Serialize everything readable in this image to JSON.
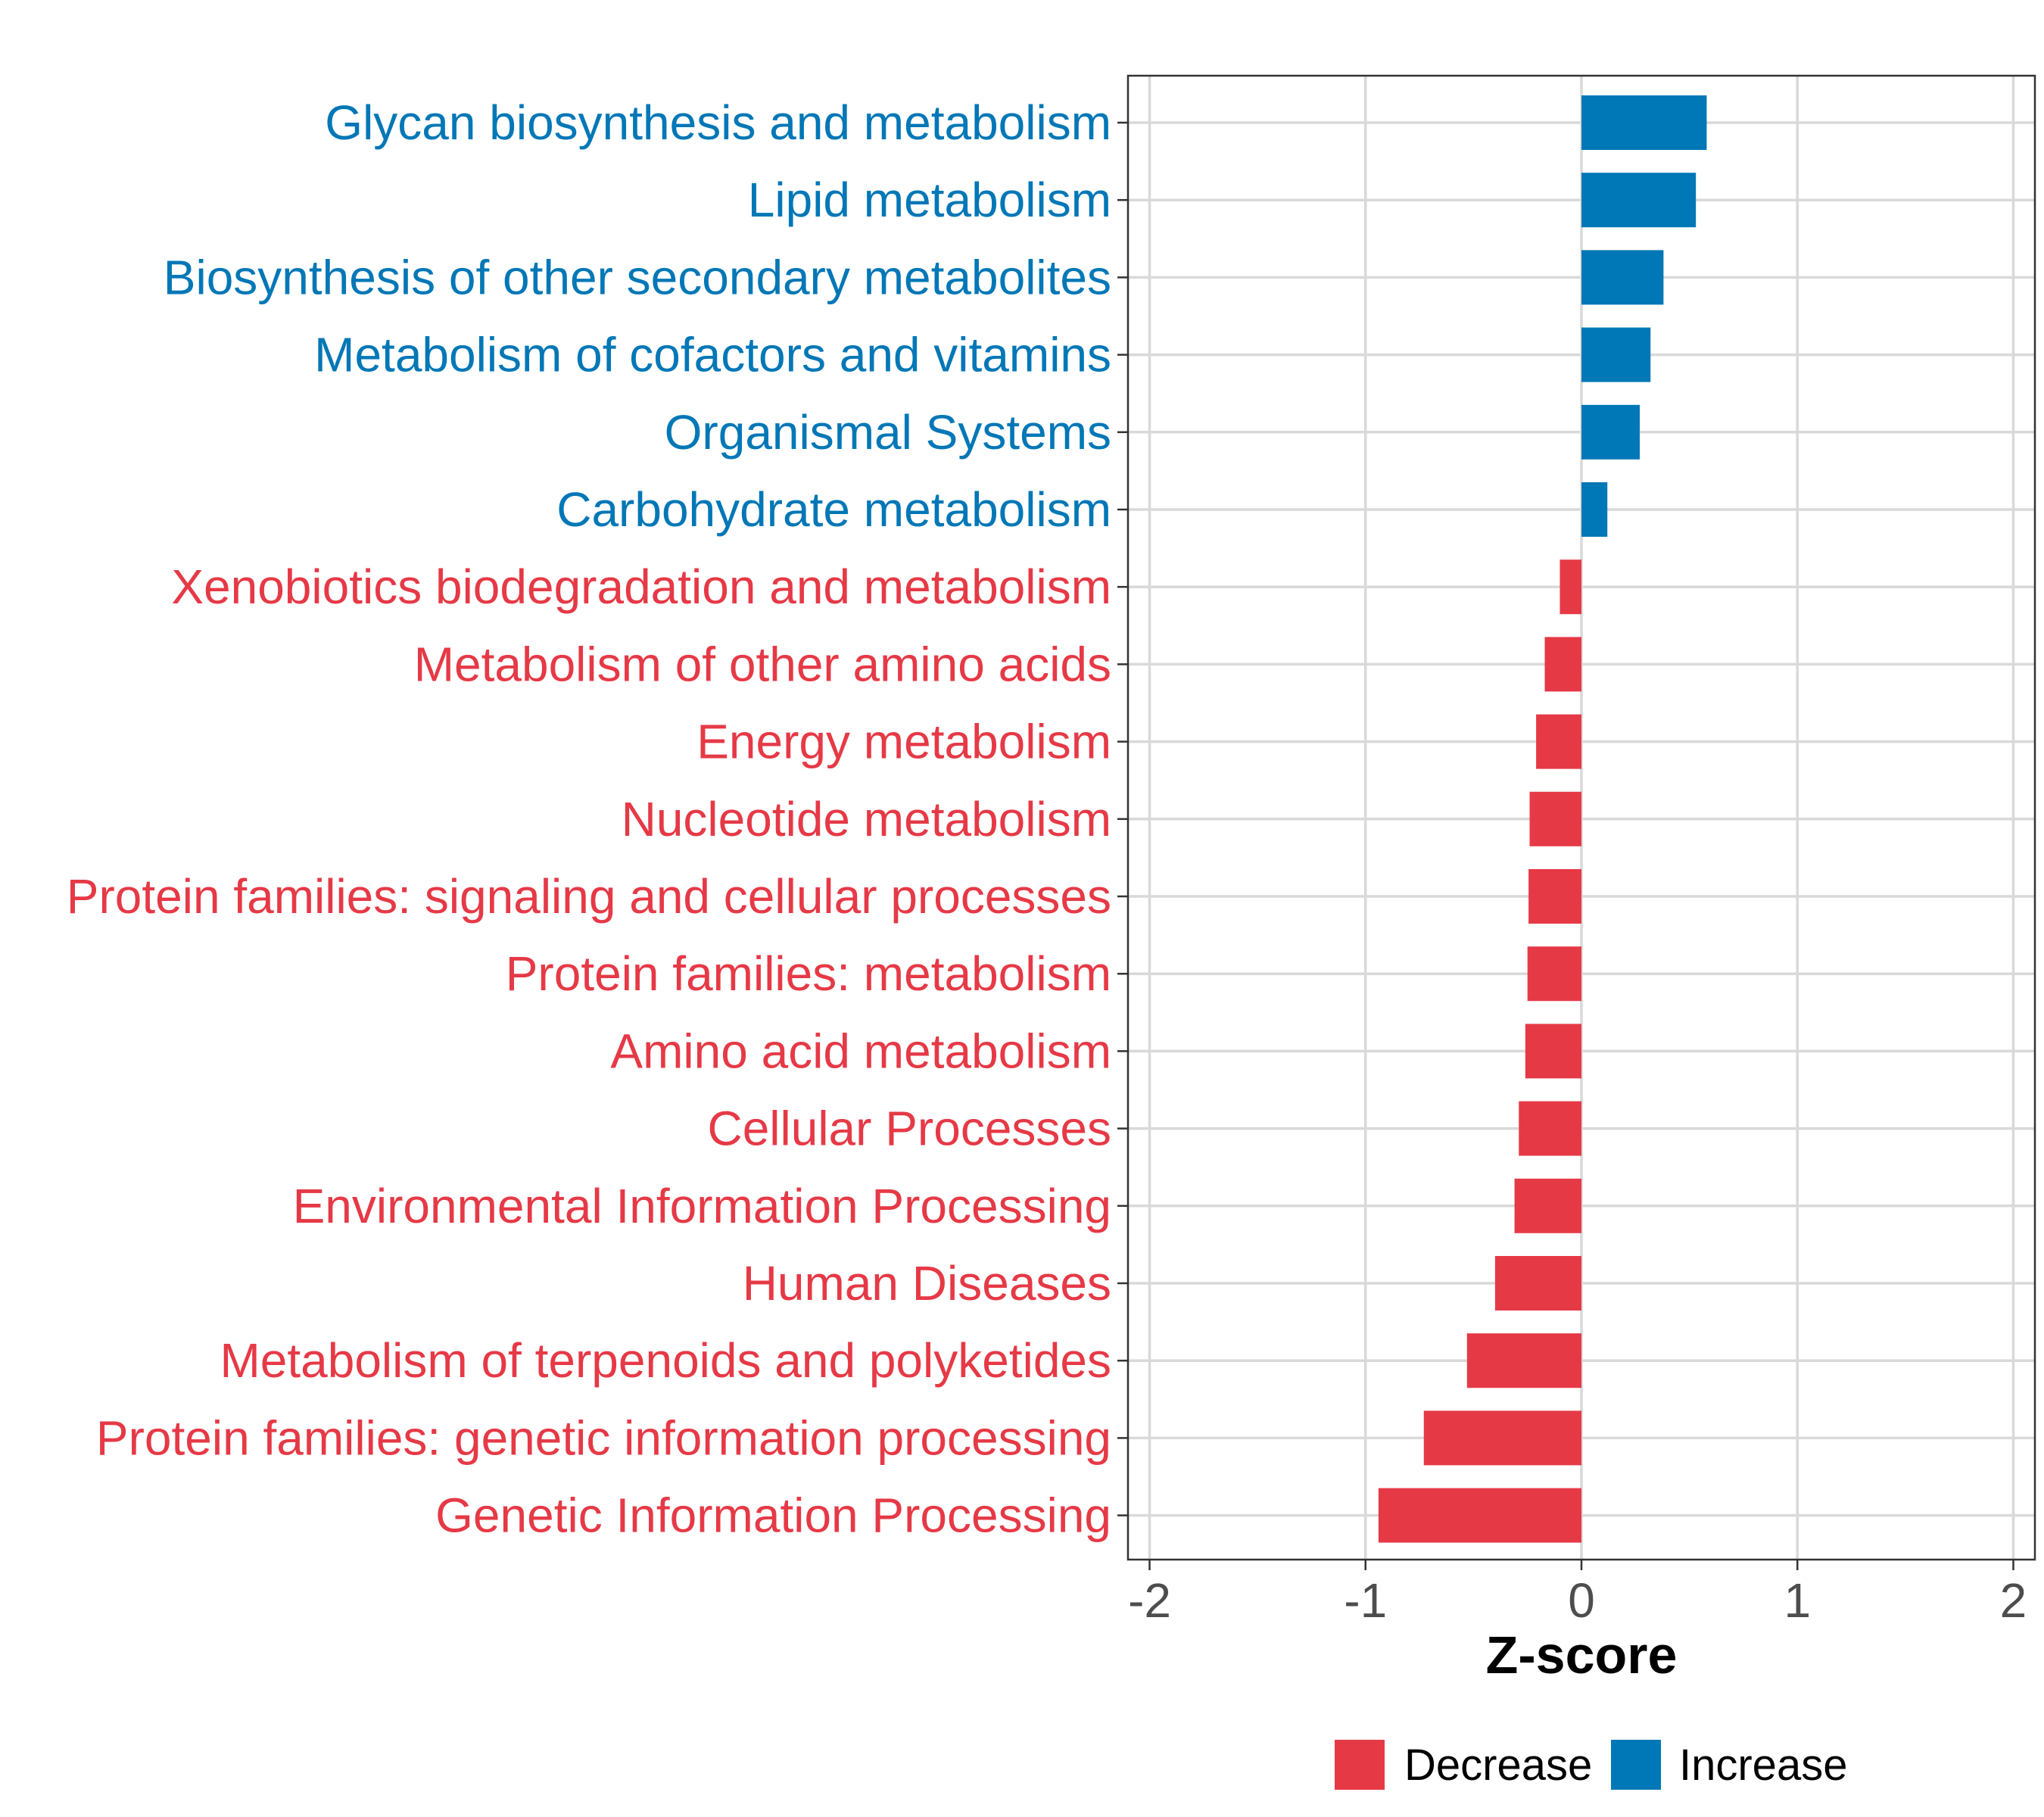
{
  "chart_data": {
    "type": "bar",
    "orientation": "horizontal",
    "title": "",
    "xlabel": "Z-score",
    "ylabel": "",
    "xlim": [
      -2.1,
      2.1
    ],
    "xticks": [
      -2,
      -1,
      0,
      1,
      2
    ],
    "xtick_labels": [
      "-2",
      "-1",
      "0",
      "1",
      "2"
    ],
    "grid": true,
    "categories": [
      "Glycan biosynthesis and metabolism",
      "Lipid metabolism",
      "Biosynthesis of other secondary metabolites",
      "Metabolism of cofactors and vitamins",
      "Organismal Systems",
      "Carbohydrate metabolism",
      "Xenobiotics biodegradation and metabolism",
      "Metabolism of other amino acids",
      "Energy metabolism",
      "Nucleotide metabolism",
      "Protein families: signaling and cellular processes",
      "Protein families: metabolism",
      "Amino acid metabolism",
      "Cellular Processes",
      "Environmental Information Processing",
      "Human Diseases",
      "Metabolism of terpenoids and polyketides",
      "Protein families: genetic information processing",
      "Genetic Information Processing"
    ],
    "values": [
      0.58,
      0.53,
      0.38,
      0.32,
      0.27,
      0.12,
      -0.1,
      -0.17,
      -0.21,
      -0.24,
      -0.245,
      -0.25,
      -0.26,
      -0.29,
      -0.31,
      -0.4,
      -0.53,
      -0.73,
      -0.94
    ],
    "legend": {
      "position": "bottom",
      "entries": [
        {
          "name": "Decrease",
          "color": "#E63946"
        },
        {
          "name": "Increase",
          "color": "#0077B6"
        }
      ]
    }
  }
}
